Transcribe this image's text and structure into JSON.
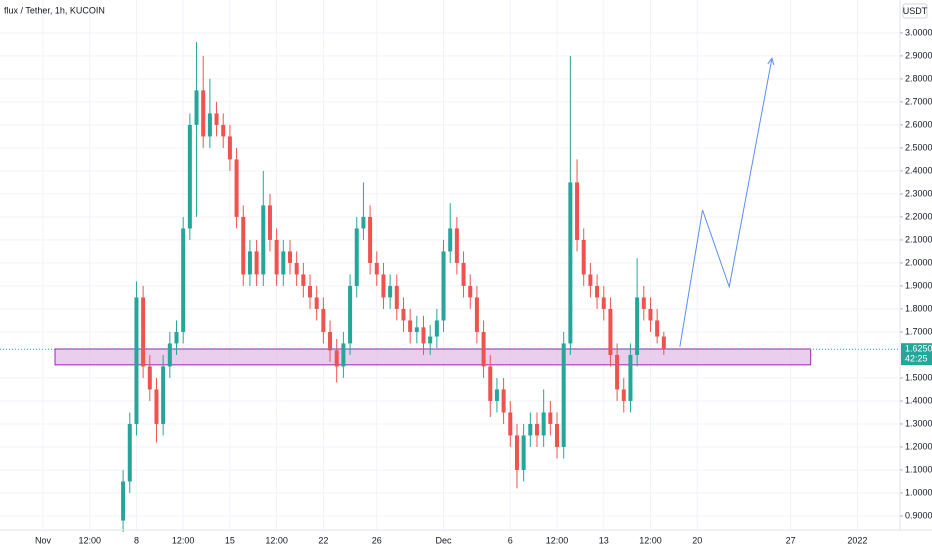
{
  "chart_data": {
    "type": "candlestick",
    "title": "flux / Tether, 1h, KUCOIN",
    "currency": "USDT",
    "up_color": "#26a69a",
    "down_color": "#ef5350",
    "grid": true,
    "xlim": [
      -3.22,
      64.19
    ],
    "ylim": [
      0.839,
      3.143
    ],
    "xticks": [
      {
        "value": 0,
        "label": "Nov"
      },
      {
        "value": 3.5,
        "label": "12:00"
      },
      {
        "value": 7,
        "label": "8"
      },
      {
        "value": 10.5,
        "label": "12:00"
      },
      {
        "value": 14,
        "label": "15"
      },
      {
        "value": 17.5,
        "label": "12:00"
      },
      {
        "value": 21,
        "label": "22"
      },
      {
        "value": 25,
        "label": "26"
      },
      {
        "value": 30,
        "label": "Dec"
      },
      {
        "value": 35,
        "label": "6"
      },
      {
        "value": 38.5,
        "label": "12:00"
      },
      {
        "value": 42,
        "label": "13"
      },
      {
        "value": 45.5,
        "label": "12:00"
      },
      {
        "value": 49,
        "label": "20"
      },
      {
        "value": 56,
        "label": "27"
      },
      {
        "value": 61,
        "label": "2022"
      }
    ],
    "yticks": [
      {
        "value": 0.9,
        "label": "0.9000"
      },
      {
        "value": 1.0,
        "label": "1.0000"
      },
      {
        "value": 1.1,
        "label": "1.1000"
      },
      {
        "value": 1.2,
        "label": "1.2000"
      },
      {
        "value": 1.3,
        "label": "1.3000"
      },
      {
        "value": 1.4,
        "label": "1.4000"
      },
      {
        "value": 1.5,
        "label": "1.5000"
      },
      {
        "value": 1.7,
        "label": "1.7000"
      },
      {
        "value": 1.8,
        "label": "1.8000"
      },
      {
        "value": 1.9,
        "label": "1.9000"
      },
      {
        "value": 2.0,
        "label": "2.0000"
      },
      {
        "value": 2.1,
        "label": "2.1000"
      },
      {
        "value": 2.2,
        "label": "2.2000"
      },
      {
        "value": 2.3,
        "label": "2.3000"
      },
      {
        "value": 2.4,
        "label": "2.4000"
      },
      {
        "value": 2.5,
        "label": "2.5000"
      },
      {
        "value": 2.6,
        "label": "2.6000"
      },
      {
        "value": 2.7,
        "label": "2.7000"
      },
      {
        "value": 2.8,
        "label": "2.8000"
      },
      {
        "value": 2.9,
        "label": "2.9000"
      },
      {
        "value": 3.0,
        "label": "3.0000"
      }
    ],
    "last_price": {
      "value": 1.625,
      "label": "1.6250"
    },
    "countdown": "42:25",
    "x": [
      6,
      6.5,
      7,
      7.5,
      8,
      8.5,
      9,
      9.5,
      10,
      10.5,
      11,
      11.5,
      12,
      12.5,
      13,
      13.5,
      14,
      14.5,
      15,
      15.5,
      16,
      16.5,
      17,
      17.5,
      18,
      18.5,
      19,
      19.5,
      20,
      20.5,
      21,
      21.5,
      22,
      22.5,
      23,
      23.5,
      24,
      24.5,
      25,
      25.5,
      26,
      26.5,
      27,
      27.5,
      28,
      28.5,
      29,
      29.5,
      30,
      30.5,
      31,
      31.5,
      32,
      32.5,
      33,
      33.5,
      34,
      34.5,
      35,
      35.5,
      36,
      36.5,
      37,
      37.5,
      38,
      38.5,
      39,
      39.5,
      40,
      40.5,
      41,
      41.5,
      42,
      42.5,
      43,
      43.5,
      44,
      44.5,
      45,
      45.5,
      46,
      46.5
    ],
    "open": [
      0.88,
      1.05,
      1.3,
      1.85,
      1.55,
      1.45,
      1.3,
      1.55,
      1.65,
      1.7,
      2.15,
      2.6,
      2.75,
      2.55,
      2.65,
      2.6,
      2.55,
      2.45,
      2.2,
      1.95,
      2.05,
      1.95,
      2.25,
      2.1,
      1.95,
      2.05,
      2.0,
      1.95,
      1.9,
      1.85,
      1.8,
      1.7,
      1.62,
      1.55,
      1.65,
      1.9,
      2.15,
      2.2,
      2.0,
      1.95,
      1.85,
      1.9,
      1.8,
      1.75,
      1.7,
      1.72,
      1.65,
      1.68,
      1.75,
      2.05,
      2.15,
      2.0,
      1.9,
      1.85,
      1.7,
      1.55,
      1.4,
      1.45,
      1.35,
      1.25,
      1.1,
      1.25,
      1.3,
      1.25,
      1.35,
      1.3,
      1.2,
      1.65,
      2.35,
      2.1,
      1.95,
      1.9,
      1.85,
      1.8,
      1.6,
      1.45,
      1.4,
      1.6,
      1.85,
      1.8,
      1.75,
      1.68
    ],
    "high": [
      1.1,
      1.35,
      1.92,
      1.9,
      1.6,
      1.5,
      1.6,
      1.7,
      1.75,
      2.2,
      2.65,
      2.96,
      2.9,
      2.8,
      2.7,
      2.65,
      2.6,
      2.5,
      2.25,
      2.1,
      2.1,
      2.4,
      2.3,
      2.15,
      2.1,
      2.1,
      2.05,
      2.0,
      1.95,
      1.9,
      1.85,
      1.75,
      1.67,
      1.7,
      1.95,
      2.2,
      2.35,
      2.25,
      2.05,
      2.0,
      1.95,
      1.95,
      1.85,
      1.8,
      1.77,
      1.77,
      1.73,
      1.8,
      2.1,
      2.26,
      2.2,
      2.05,
      1.95,
      1.9,
      1.75,
      1.6,
      1.5,
      1.5,
      1.4,
      1.3,
      1.3,
      1.35,
      1.35,
      1.45,
      1.4,
      1.35,
      1.7,
      2.9,
      2.45,
      2.15,
      2.0,
      1.95,
      1.9,
      1.85,
      1.65,
      1.5,
      1.65,
      2.02,
      1.9,
      1.85,
      1.8,
      1.7
    ],
    "low": [
      0.83,
      1.0,
      1.25,
      1.5,
      1.4,
      1.22,
      1.25,
      1.5,
      1.6,
      1.65,
      2.1,
      2.2,
      2.5,
      2.5,
      2.55,
      2.5,
      2.4,
      2.15,
      1.9,
      1.9,
      1.9,
      1.9,
      2.05,
      1.9,
      1.9,
      1.95,
      1.9,
      1.85,
      1.8,
      1.75,
      1.65,
      1.57,
      1.48,
      1.5,
      1.6,
      1.85,
      2.1,
      1.95,
      1.9,
      1.8,
      1.8,
      1.75,
      1.7,
      1.65,
      1.65,
      1.6,
      1.6,
      1.63,
      1.7,
      2.0,
      1.95,
      1.85,
      1.8,
      1.65,
      1.5,
      1.33,
      1.35,
      1.3,
      1.2,
      1.02,
      1.05,
      1.2,
      1.2,
      1.2,
      1.25,
      1.15,
      1.15,
      1.6,
      2.05,
      1.9,
      1.85,
      1.8,
      1.75,
      1.55,
      1.4,
      1.35,
      1.35,
      1.55,
      1.75,
      1.7,
      1.65,
      1.6
    ],
    "close": [
      1.05,
      1.3,
      1.85,
      1.55,
      1.45,
      1.3,
      1.55,
      1.65,
      1.7,
      2.15,
      2.6,
      2.75,
      2.55,
      2.65,
      2.6,
      2.55,
      2.45,
      2.2,
      1.95,
      2.05,
      1.95,
      2.25,
      2.1,
      1.95,
      2.05,
      2.0,
      1.95,
      1.9,
      1.85,
      1.8,
      1.7,
      1.62,
      1.55,
      1.65,
      1.9,
      2.15,
      2.2,
      2.0,
      1.95,
      1.85,
      1.9,
      1.8,
      1.75,
      1.7,
      1.72,
      1.65,
      1.68,
      1.75,
      2.05,
      2.15,
      2.0,
      1.9,
      1.85,
      1.7,
      1.55,
      1.4,
      1.45,
      1.35,
      1.25,
      1.1,
      1.25,
      1.3,
      1.25,
      1.35,
      1.3,
      1.2,
      1.65,
      2.35,
      2.1,
      1.95,
      1.9,
      1.85,
      1.8,
      1.6,
      1.45,
      1.4,
      1.6,
      1.85,
      1.8,
      1.75,
      1.68,
      1.625
    ],
    "zone": {
      "x": [
        0.9,
        57.5
      ],
      "y": [
        1.557,
        1.626
      ],
      "color": "#e1bee7",
      "border": "#9c27b0"
    },
    "projection": {
      "x": [
        47.7,
        49.4,
        51.4,
        54.6
      ],
      "y": [
        1.635,
        2.23,
        1.896,
        2.89
      ],
      "color": "#5b8def"
    }
  }
}
